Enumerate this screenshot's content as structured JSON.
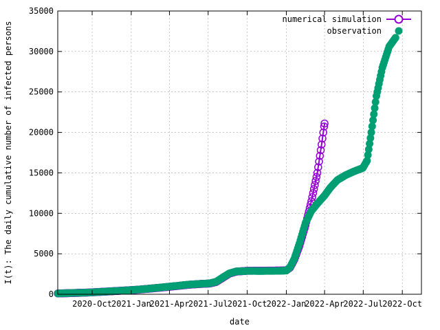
{
  "chart_data": {
    "type": "scatter",
    "xlabel": "date",
    "ylabel": "I(t): The daily cumulative number of infected persons",
    "x_type": "date",
    "xlim": [
      "2020-07-12",
      "2022-11-15"
    ],
    "ylim": [
      0,
      35000
    ],
    "xticks": [
      {
        "date": "2020-10-01",
        "label": "2020-Oct"
      },
      {
        "date": "2021-01-01",
        "label": "2021-Jan"
      },
      {
        "date": "2021-04-01",
        "label": "2021-Apr"
      },
      {
        "date": "2021-07-01",
        "label": "2021-Jul"
      },
      {
        "date": "2021-10-01",
        "label": "2021-Oct"
      },
      {
        "date": "2022-01-01",
        "label": "2022-Jan"
      },
      {
        "date": "2022-04-01",
        "label": "2022-Apr"
      },
      {
        "date": "2022-07-01",
        "label": "2022-Jul"
      },
      {
        "date": "2022-10-01",
        "label": "2022-Oct"
      }
    ],
    "yticks": [
      {
        "value": 0,
        "label": "0"
      },
      {
        "value": 5000,
        "label": "5000"
      },
      {
        "value": 10000,
        "label": "10000"
      },
      {
        "value": 15000,
        "label": "15000"
      },
      {
        "value": 20000,
        "label": "20000"
      },
      {
        "value": 25000,
        "label": "25000"
      },
      {
        "value": 30000,
        "label": "30000"
      },
      {
        "value": 35000,
        "label": "35000"
      }
    ],
    "grid": true,
    "legend_position": "top-right",
    "series": [
      {
        "name": "numerical simulation",
        "marker": "open-circle",
        "color": "#9400d3",
        "points": [
          [
            "2020-07-12",
            100
          ],
          [
            "2020-08-15",
            150
          ],
          [
            "2020-09-15",
            200
          ],
          [
            "2020-10-15",
            280
          ],
          [
            "2020-11-15",
            370
          ],
          [
            "2020-12-15",
            460
          ],
          [
            "2021-01-15",
            560
          ],
          [
            "2021-02-15",
            700
          ],
          [
            "2021-03-15",
            840
          ],
          [
            "2021-04-15",
            1000
          ],
          [
            "2021-05-15",
            1170
          ],
          [
            "2021-06-15",
            1280
          ],
          [
            "2021-07-05",
            1330
          ],
          [
            "2021-07-20",
            1520
          ],
          [
            "2021-08-05",
            2050
          ],
          [
            "2021-08-20",
            2550
          ],
          [
            "2021-09-05",
            2800
          ],
          [
            "2021-10-01",
            2900
          ],
          [
            "2021-11-01",
            2910
          ],
          [
            "2021-12-01",
            2920
          ],
          [
            "2022-01-01",
            2950
          ],
          [
            "2022-01-10",
            3300
          ],
          [
            "2022-01-20",
            4300
          ],
          [
            "2022-02-01",
            6000
          ],
          [
            "2022-02-15",
            8500
          ],
          [
            "2022-03-01",
            11500
          ],
          [
            "2022-03-15",
            15000
          ],
          [
            "2022-03-25",
            18500
          ],
          [
            "2022-04-01",
            21100
          ]
        ]
      },
      {
        "name": "observation",
        "marker": "filled-circle",
        "color": "#009e73",
        "points": [
          [
            "2020-07-12",
            100
          ],
          [
            "2020-08-15",
            160
          ],
          [
            "2020-09-15",
            200
          ],
          [
            "2020-10-15",
            280
          ],
          [
            "2020-11-15",
            370
          ],
          [
            "2020-12-15",
            460
          ],
          [
            "2021-01-15",
            570
          ],
          [
            "2021-02-15",
            710
          ],
          [
            "2021-03-15",
            860
          ],
          [
            "2021-04-15",
            1020
          ],
          [
            "2021-05-15",
            1190
          ],
          [
            "2021-06-15",
            1290
          ],
          [
            "2021-07-05",
            1350
          ],
          [
            "2021-07-20",
            1550
          ],
          [
            "2021-08-05",
            2100
          ],
          [
            "2021-08-20",
            2580
          ],
          [
            "2021-09-05",
            2820
          ],
          [
            "2021-10-01",
            2880
          ],
          [
            "2021-11-01",
            2870
          ],
          [
            "2021-12-01",
            2880
          ],
          [
            "2022-01-01",
            2920
          ],
          [
            "2022-01-10",
            3350
          ],
          [
            "2022-01-20",
            4400
          ],
          [
            "2022-02-01",
            6300
          ],
          [
            "2022-02-15",
            8800
          ],
          [
            "2022-03-01",
            10300
          ],
          [
            "2022-03-15",
            11200
          ],
          [
            "2022-04-01",
            12200
          ],
          [
            "2022-04-15",
            13200
          ],
          [
            "2022-05-01",
            14100
          ],
          [
            "2022-05-20",
            14700
          ],
          [
            "2022-06-10",
            15200
          ],
          [
            "2022-06-30",
            15600
          ],
          [
            "2022-07-10",
            16500
          ],
          [
            "2022-07-20",
            20000
          ],
          [
            "2022-08-01",
            24500
          ],
          [
            "2022-08-15",
            28000
          ],
          [
            "2022-08-31",
            30600
          ],
          [
            "2022-09-15",
            31700
          ]
        ]
      }
    ]
  }
}
